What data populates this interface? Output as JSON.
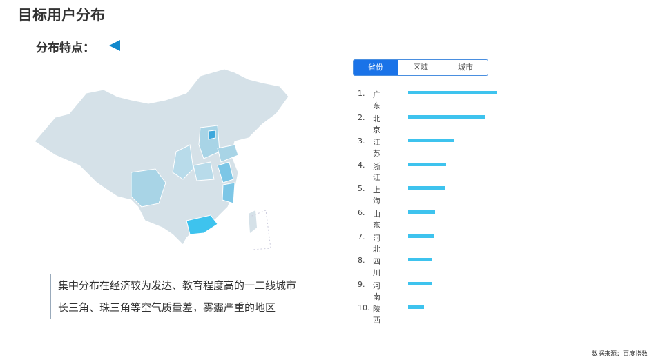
{
  "header": {
    "title": "目标用户分布",
    "subtitle": "分布特点："
  },
  "tabs": [
    {
      "label": "省份",
      "active": true
    },
    {
      "label": "区域"
    },
    {
      "label": "城市"
    }
  ],
  "ranking": [
    {
      "rank": "1.",
      "name": "广东",
      "value": 100
    },
    {
      "rank": "2.",
      "name": "北京",
      "value": 87
    },
    {
      "rank": "3.",
      "name": "江苏",
      "value": 52
    },
    {
      "rank": "4.",
      "name": "浙江",
      "value": 43
    },
    {
      "rank": "5.",
      "name": "上海",
      "value": 41
    },
    {
      "rank": "6.",
      "name": "山东",
      "value": 30
    },
    {
      "rank": "7.",
      "name": "河北",
      "value": 29
    },
    {
      "rank": "8.",
      "name": "四川",
      "value": 27
    },
    {
      "rank": "9.",
      "name": "河南",
      "value": 26
    },
    {
      "rank": "10.",
      "name": "陕西",
      "value": 18
    }
  ],
  "description": [
    "集中分布在经济较为发达、教育程度高的一二线城市",
    "长三角、珠三角等空气质量差，雾霾严重的地区"
  ],
  "source": "数据来源：百度指数",
  "colors": {
    "accent": "#1a73e8",
    "bar": "#3ec3ee",
    "map_base": "#d5e1e8",
    "map_high": "#3ec3ee"
  }
}
